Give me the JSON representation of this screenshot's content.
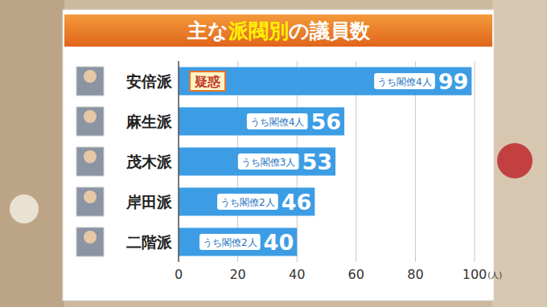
{
  "chart_data": {
    "type": "bar",
    "orientation": "horizontal",
    "title": "主な派閥別の議員数",
    "categories": [
      "安倍派",
      "麻生派",
      "茂木派",
      "岸田派",
      "二階派"
    ],
    "values": [
      99,
      56,
      53,
      46,
      40
    ],
    "notes": [
      "うち閣僚4人",
      "うち閣僚4人",
      "うち閣僚3人",
      "うち閣僚2人",
      "うち閣僚2人"
    ],
    "badges": [
      "疑惑",
      null,
      null,
      null,
      null
    ],
    "color": "#3d9de4",
    "xlim": [
      0,
      100
    ],
    "xticks": [
      0,
      20,
      40,
      60,
      80,
      100
    ],
    "xlabel": "(人)",
    "grid": true,
    "data_labels": true
  }
}
